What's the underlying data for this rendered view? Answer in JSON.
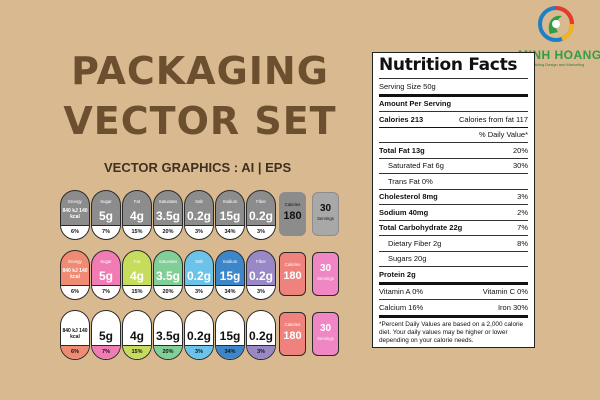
{
  "headline": {
    "line1": "PACKAGING",
    "line2": "VECTOR SET",
    "subtitle": "VECTOR GRAPHICS : AI  | EPS"
  },
  "logo": {
    "name": "MINH HOANG",
    "tagline": "Building Design and Marketing",
    "icon": "swirl-logo-icon",
    "colors": [
      "#e8392b",
      "#f7b31b",
      "#2f9e45",
      "#1f7fc4"
    ]
  },
  "nutrition": {
    "title": "Nutrition Facts",
    "serving_size": "Serving Size 50g",
    "amount_per_serving": "Amount Per Serving",
    "calories": "Calories 213",
    "calories_fat": "Calories from fat 117",
    "daily_value_header": "% Daily Value*",
    "rows": [
      {
        "label": "Total Fat 13g",
        "value": "20%",
        "bold": true,
        "indent": false
      },
      {
        "label": "Saturated Fat 6g",
        "value": "30%",
        "bold": false,
        "indent": true
      },
      {
        "label": "Trans Fat 0%",
        "value": "",
        "bold": false,
        "indent": true
      },
      {
        "label": "Cholesterol 8mg",
        "value": "3%",
        "bold": true,
        "indent": false
      },
      {
        "label": "Sodium 40mg",
        "value": "2%",
        "bold": true,
        "indent": false
      },
      {
        "label": "Total Carbohydrate 22g",
        "value": "7%",
        "bold": true,
        "indent": false
      },
      {
        "label": "Dietary Fiber 2g",
        "value": "8%",
        "bold": false,
        "indent": true
      },
      {
        "label": "Sugars 20g",
        "value": "",
        "bold": false,
        "indent": true
      },
      {
        "label": "Protein 2g",
        "value": "",
        "bold": true,
        "indent": false
      }
    ],
    "vitamin_a": "Vitamin A 0%",
    "vitamin_c": "Vitamin C 0%",
    "calcium": "Calcium 16%",
    "iron": "Iron 30%",
    "footnote": "*Percent Daily Values are based on a 2,000 calorie diet. Your daily values may be higher or lower depending on your calorie needs."
  },
  "label_sets": [
    {
      "style": "grey",
      "pills": [
        {
          "name": "Energy",
          "value": "840 kJ 140 kcal",
          "percent": "6%",
          "color": "#8c8c8c",
          "energy": true
        },
        {
          "name": "Sugar",
          "value": "5g",
          "percent": "7%",
          "color": "#8c8c8c"
        },
        {
          "name": "Fat",
          "value": "4g",
          "percent": "15%",
          "color": "#8c8c8c"
        },
        {
          "name": "Saturates",
          "value": "3.5g",
          "percent": "20%",
          "color": "#8c8c8c"
        },
        {
          "name": "Salt",
          "value": "0.2g",
          "percent": "3%",
          "color": "#8c8c8c"
        },
        {
          "name": "Sodium",
          "value": "15g",
          "percent": "34%",
          "color": "#8c8c8c"
        },
        {
          "name": "Fiber",
          "value": "0.2g",
          "percent": "3%",
          "color": "#8c8c8c"
        }
      ],
      "calories": {
        "label": "Calories",
        "value": "180",
        "fill": "#8c8c8c",
        "text": "#111"
      },
      "servings": {
        "label": "Servings",
        "value": "30",
        "fill": "#a8a8a8",
        "text": "#111"
      }
    },
    {
      "style": "color",
      "pills": [
        {
          "name": "Energy",
          "value": "840 kJ 140 kcal",
          "percent": "6%",
          "color": "#f08a73",
          "energy": true
        },
        {
          "name": "Sugar",
          "value": "5g",
          "percent": "7%",
          "color": "#f07cb3"
        },
        {
          "name": "Fat",
          "value": "4g",
          "percent": "15%",
          "color": "#c6dc5c"
        },
        {
          "name": "Saturates",
          "value": "3.5g",
          "percent": "20%",
          "color": "#7fcf96"
        },
        {
          "name": "Salt",
          "value": "0.2g",
          "percent": "3%",
          "color": "#6cc3ea"
        },
        {
          "name": "Sodium",
          "value": "15g",
          "percent": "34%",
          "color": "#3d86c9"
        },
        {
          "name": "Fiber",
          "value": "0.2g",
          "percent": "3%",
          "color": "#9a88c6"
        }
      ],
      "calories": {
        "label": "Calories",
        "value": "180",
        "fill": "#f0827d",
        "text": "#fff"
      },
      "servings": {
        "label": "Servings",
        "value": "30",
        "fill": "#f086c4",
        "text": "#fff"
      }
    },
    {
      "style": "white",
      "pills": [
        {
          "name": "",
          "value": "840 kJ 140 kcal",
          "percent": "6%",
          "color": "#f08a73",
          "energy": true
        },
        {
          "name": "",
          "value": "5g",
          "percent": "7%",
          "color": "#f07cb3"
        },
        {
          "name": "",
          "value": "4g",
          "percent": "15%",
          "color": "#c6dc5c"
        },
        {
          "name": "",
          "value": "3.5g",
          "percent": "20%",
          "color": "#7fcf96"
        },
        {
          "name": "",
          "value": "0.2g",
          "percent": "3%",
          "color": "#6cc3ea"
        },
        {
          "name": "",
          "value": "15g",
          "percent": "34%",
          "color": "#3d86c9"
        },
        {
          "name": "",
          "value": "0.2g",
          "percent": "3%",
          "color": "#9a88c6"
        }
      ],
      "calories": {
        "label": "Calories",
        "value": "180",
        "fill": "#f0827d",
        "text": "#fff"
      },
      "servings": {
        "label": "Servings",
        "value": "30",
        "fill": "#f086c4",
        "text": "#fff"
      }
    }
  ]
}
